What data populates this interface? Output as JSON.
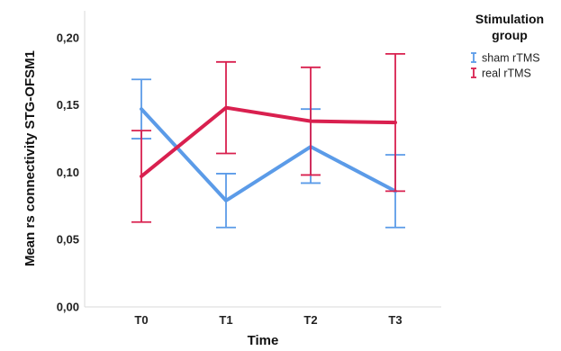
{
  "chart_data": {
    "type": "line",
    "xlabel": "Time",
    "ylabel": "Mean rs connectivity STG-OFSM1",
    "categories": [
      "T0",
      "T1",
      "T2",
      "T3"
    ],
    "ylim": [
      0,
      0.22
    ],
    "yticks": [
      "0,00",
      "0,05",
      "0,10",
      "0,15",
      "0,20"
    ],
    "ytick_values": [
      0,
      0.05,
      0.1,
      0.15,
      0.2
    ],
    "grid": false,
    "error_bars": true,
    "legend": {
      "title_line1": "Stimulation",
      "title_line2": "group",
      "position": "top-right"
    },
    "series": [
      {
        "name": "sham rTMS",
        "color": "#5b9be8",
        "values": [
          0.147,
          0.079,
          0.119,
          0.086
        ],
        "lower": [
          0.125,
          0.059,
          0.092,
          0.059
        ],
        "upper": [
          0.169,
          0.099,
          0.147,
          0.113
        ]
      },
      {
        "name": "real rTMS",
        "color": "#d9204f",
        "values": [
          0.097,
          0.148,
          0.138,
          0.137
        ],
        "lower": [
          0.063,
          0.114,
          0.098,
          0.086
        ],
        "upper": [
          0.131,
          0.182,
          0.178,
          0.188
        ]
      }
    ]
  }
}
